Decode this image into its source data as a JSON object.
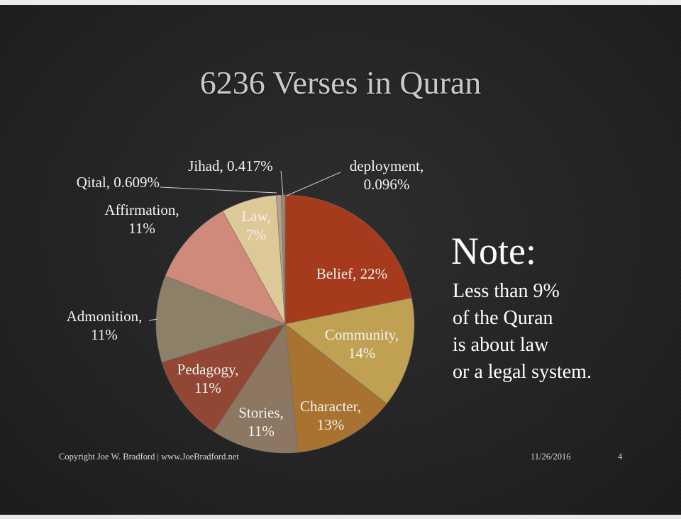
{
  "slide": {
    "title": "6236 Verses in Quran",
    "note_title": "Note:",
    "note_lines": [
      "Less than 9%",
      "of the Quran",
      "is about law",
      "or a legal system."
    ],
    "footer_copyright": "Copyright Joe W. Bradford | www.JoeBradford.net",
    "footer_date": "11/26/2016",
    "footer_page": "4"
  },
  "chart_data": {
    "type": "pie",
    "title": "6236 Verses in Quran",
    "start": "12 o'clock",
    "direction": "clockwise",
    "slices": [
      {
        "name": "Belief",
        "value": 22,
        "label": [
          "Belief, 22%"
        ],
        "color": "#a63a1c"
      },
      {
        "name": "Community",
        "value": 14,
        "label": [
          "Community,",
          "14%"
        ],
        "color": "#c0a052"
      },
      {
        "name": "Character",
        "value": 13,
        "label": [
          "Character,",
          "13%"
        ],
        "color": "#a87230"
      },
      {
        "name": "Stories",
        "value": 11,
        "label": [
          "Stories,",
          "11%"
        ],
        "color": "#8c7862"
      },
      {
        "name": "Pedagogy",
        "value": 11,
        "label": [
          "Pedagogy,",
          "11%"
        ],
        "color": "#924634"
      },
      {
        "name": "Admonition",
        "value": 11,
        "label": [
          "Admonition,",
          "11%"
        ],
        "color": "#8c8068"
      },
      {
        "name": "Affirmation",
        "value": 11,
        "label": [
          "Affirmation,",
          "11%"
        ],
        "color": "#d08a7a"
      },
      {
        "name": "Law",
        "value": 7,
        "label": [
          "Law,",
          "7%"
        ],
        "color": "#ddc898"
      },
      {
        "name": "Qital",
        "value": 0.609,
        "label": [
          "Qital, 0.609%"
        ],
        "color": "#b8a08a"
      },
      {
        "name": "Jihad",
        "value": 0.417,
        "label": [
          "Jihad, 0.417%"
        ],
        "color": "#9a8a70"
      },
      {
        "name": "deployment",
        "value": 0.096,
        "label": [
          "deployment,",
          "0.096%"
        ],
        "color": "#c8b070"
      }
    ]
  }
}
